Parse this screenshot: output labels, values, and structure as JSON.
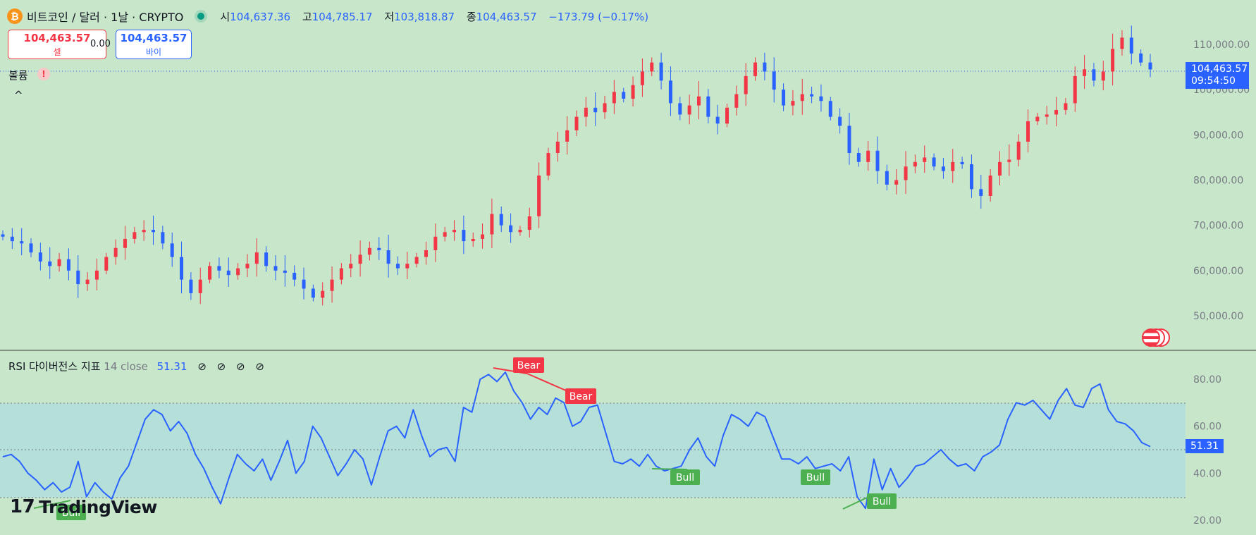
{
  "header": {
    "coin_icon": "bitcoin-icon",
    "coin_symbol": "₿",
    "title": "비트코인 / 달러 · 1날 · CRYPTO",
    "status": "market-open-dot",
    "open_label": "시",
    "open": "104,637.36",
    "high_label": "고",
    "high": "104,785.17",
    "low_label": "저",
    "low": "103,818.87",
    "close_label": "종",
    "close": "104,463.57",
    "change": "−173.79 (−0.17%)"
  },
  "trade": {
    "sell_price": "104,463.57",
    "sell_label": "셀",
    "spread": "0.00",
    "buy_price": "104,463.57",
    "buy_label": "바이"
  },
  "volume": {
    "label": "볼륨",
    "warning": "!",
    "collapse": "^"
  },
  "price_axis": {
    "ticks": [
      "110,000.00",
      "100,000.00",
      "90,000.00",
      "80,000.00",
      "70,000.00",
      "60,000.00",
      "50,000.00"
    ]
  },
  "price_tag": {
    "price": "104,463.57",
    "countdown": "09:54:50"
  },
  "rsi": {
    "name": "RSI 다이버전스 지표",
    "params": "14 close",
    "value": "51.31",
    "icons": [
      "⊘",
      "⊘",
      "⊘",
      "⊘"
    ],
    "ticks": [
      "80.00",
      "60.00",
      "40.00",
      "20.00"
    ],
    "tag": "51.31"
  },
  "logo": {
    "mark": "17",
    "text": "TradingView"
  },
  "colors": {
    "up": "#f23645",
    "down": "#2962ff",
    "rsi": "#2962ff",
    "bear": "#f23645",
    "bull": "#4caf50",
    "background": "#c8e6c9"
  },
  "chart_data": {
    "type": "candlestick",
    "price_axis_ticks": [
      110000,
      100000,
      90000,
      80000,
      70000,
      60000,
      50000
    ],
    "approx_daily_closes": [
      67500,
      66500,
      66000,
      64000,
      62000,
      61000,
      62500,
      60000,
      57000,
      58000,
      60000,
      63000,
      65000,
      67000,
      68500,
      69000,
      68500,
      66000,
      63000,
      58000,
      55000,
      58000,
      61000,
      60000,
      59000,
      60500,
      61500,
      64000,
      61000,
      60000,
      59500,
      58000,
      56000,
      54000,
      55500,
      58000,
      60500,
      61500,
      63500,
      65000,
      64500,
      61500,
      60500,
      61500,
      63000,
      64500,
      67500,
      68500,
      69000,
      66500,
      67000,
      68000,
      72500,
      70000,
      68500,
      69000,
      72000,
      81000,
      86000,
      88500,
      91000,
      94000,
      96000,
      95000,
      97000,
      99500,
      98000,
      101000,
      104000,
      106000,
      102000,
      97000,
      94500,
      96500,
      98500,
      94000,
      92500,
      96000,
      99000,
      103000,
      106000,
      104000,
      100000,
      96500,
      97500,
      99000,
      98500,
      97500,
      94000,
      92000,
      86000,
      84000,
      86500,
      82000,
      79000,
      80000,
      83000,
      84000,
      85000,
      83000,
      82000,
      84000,
      83500,
      78000,
      76500,
      81000,
      84000,
      84500,
      88500,
      93000,
      94000,
      94500,
      95500,
      97000,
      103000,
      104500,
      102000,
      104000,
      109000,
      111500,
      108000,
      106000,
      104463.57
    ],
    "rsi": {
      "length": 14,
      "source": "close",
      "current": 51.31,
      "axis_ticks": [
        80,
        60,
        40,
        20
      ],
      "overbought": 70,
      "midline": 50,
      "oversold": 30,
      "approx_values": [
        47,
        48,
        45,
        40,
        37,
        33,
        36,
        32,
        34,
        45,
        30,
        36,
        32,
        29,
        38,
        43,
        53,
        63,
        67,
        65,
        58,
        62,
        57,
        48,
        42,
        34,
        27,
        38,
        48,
        44,
        41,
        46,
        37,
        45,
        54,
        40,
        45,
        60,
        55,
        47,
        39,
        44,
        50,
        46,
        35,
        47,
        58,
        60,
        55,
        67,
        56,
        47,
        50,
        51,
        45,
        68,
        66,
        80,
        82,
        79,
        83,
        75,
        70,
        63,
        68,
        65,
        72,
        70,
        60,
        62,
        68,
        69,
        57,
        45,
        44,
        46,
        43,
        48,
        43,
        41,
        42,
        43,
        50,
        55,
        47,
        43,
        56,
        65,
        63,
        60,
        66,
        64,
        55,
        46,
        46,
        44,
        47,
        42,
        43,
        44,
        41,
        47,
        30,
        25,
        46,
        33,
        42,
        34,
        38,
        43,
        44,
        47,
        50,
        46,
        43,
        44,
        41,
        47,
        49,
        52,
        63,
        70,
        69,
        71,
        67,
        63,
        71,
        76,
        69,
        68,
        76,
        78,
        67,
        62,
        61,
        58,
        53,
        51.31
      ],
      "divergences": [
        {
          "label": "Bear",
          "kind": "bearish"
        },
        {
          "label": "Bear",
          "kind": "bearish"
        },
        {
          "label": "Bull",
          "kind": "bullish"
        },
        {
          "label": "Bull",
          "kind": "bullish"
        },
        {
          "label": "Bull",
          "kind": "bullish"
        },
        {
          "label": "Bull",
          "kind": "bullish"
        }
      ]
    }
  }
}
